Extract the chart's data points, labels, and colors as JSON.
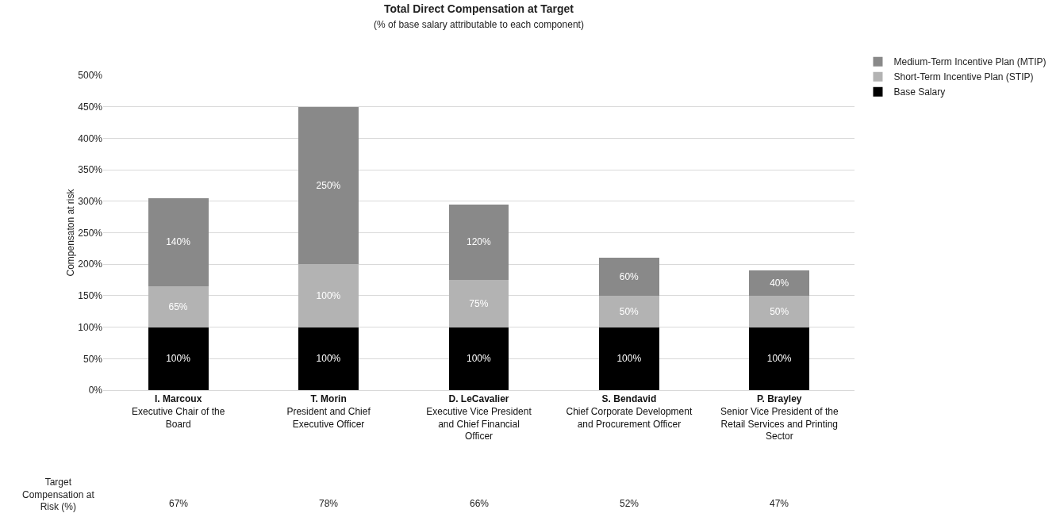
{
  "chart_data": {
    "type": "bar",
    "stacked": true,
    "title": "Total Direct Compensation at Target",
    "subtitle": "(% of base salary attributable to each component)",
    "ylabel": "Compensaton at risk",
    "categories": [
      "I. Marcoux\nExecutive Chair of the\nBoard",
      "T. Morin\nPresident and Chief\nExecutive Officer",
      "D. LeCavalier\nExecutive Vice President\nand Chief Financial\nOfficer",
      "S. Bendavid\nChief Corporate Development\nand Procurement Officer",
      "P. Brayley\nSenior Vice President of the\nRetail Services and Printing\nSector"
    ],
    "series": [
      {
        "name": "Base Salary",
        "color": "#000000",
        "values": [
          100,
          100,
          100,
          100,
          100
        ],
        "value_labels": [
          "100%",
          "100%",
          "100%",
          "100%",
          "100%"
        ]
      },
      {
        "name": "Short-Term Incentive Plan (STIP)",
        "color": "#b3b3b3",
        "values": [
          65,
          100,
          75,
          50,
          50
        ],
        "value_labels": [
          "65%",
          "100%",
          "75%",
          "50%",
          "50%"
        ]
      },
      {
        "name": "Medium-Term Incentive Plan (MTIP)",
        "color": "#898989",
        "values": [
          140,
          250,
          120,
          60,
          40
        ],
        "value_labels": [
          "140%",
          "250%",
          "120%",
          "60%",
          "40%"
        ]
      }
    ],
    "ylim": [
      0,
      500
    ],
    "yticks": [
      {
        "value": 0,
        "label": "0%"
      },
      {
        "value": 50,
        "label": "50%"
      },
      {
        "value": 100,
        "label": "100%"
      },
      {
        "value": 150,
        "label": "150%"
      },
      {
        "value": 200,
        "label": "200%"
      },
      {
        "value": 250,
        "label": "250%"
      },
      {
        "value": 300,
        "label": "300%"
      },
      {
        "value": 350,
        "label": "350%"
      },
      {
        "value": 400,
        "label": "400%"
      },
      {
        "value": 450,
        "label": "450%"
      },
      {
        "value": 500,
        "label": "500%"
      }
    ],
    "grid": "y",
    "legend": "top right",
    "annotations": [
      "Target\nCompensation at\nRisk (%)",
      "67%",
      "78%",
      "66%",
      "52%",
      "47%"
    ]
  }
}
